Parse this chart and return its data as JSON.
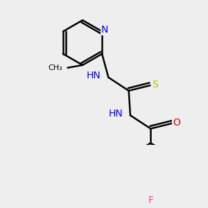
{
  "bg_color": "#eeeeee",
  "bond_color": "#000000",
  "N_color": "#0000ee",
  "O_color": "#dd0000",
  "S_color": "#bbbb00",
  "F_color": "#ee44aa",
  "line_width": 1.8,
  "dbo": 0.045,
  "figsize": [
    3.0,
    3.0
  ],
  "dpi": 100,
  "xlim": [
    -0.3,
    2.5
  ],
  "ylim": [
    0.3,
    3.0
  ]
}
